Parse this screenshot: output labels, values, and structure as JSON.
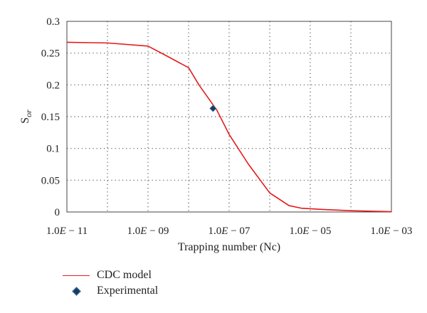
{
  "chart_data": {
    "type": "line",
    "xlabel": "Trapping number (Nc)",
    "ylabel_main": "S",
    "ylabel_sub": "or",
    "x_scale": "log",
    "xlim": [
      1e-11,
      0.001
    ],
    "ylim": [
      0,
      0.3
    ],
    "x_ticks": [
      1e-11,
      1e-10,
      1e-09,
      1e-08,
      1e-07,
      1e-06,
      1e-05,
      0.0001,
      0.001
    ],
    "x_tick_labels": [
      {
        "value": 1e-11,
        "mant": "1.0",
        "e": "E",
        "exp": " − 11"
      },
      {
        "value": 1e-09,
        "mant": "1.0",
        "e": "E",
        "exp": " − 09"
      },
      {
        "value": 1e-07,
        "mant": "1.0",
        "e": "E",
        "exp": " − 07"
      },
      {
        "value": 1e-05,
        "mant": "1.0",
        "e": "E",
        "exp": " − 05"
      },
      {
        "value": 0.001,
        "mant": "1.0",
        "e": "E",
        "exp": " − 03"
      }
    ],
    "y_ticks": [
      "0",
      "0.05",
      "0.1",
      "0.15",
      "0.2",
      "0.25",
      "0.3"
    ],
    "grid": "dotted",
    "legend_position": "bottom-left",
    "series": [
      {
        "name": "CDC model",
        "type": "line",
        "color": "#e41a1c",
        "points": [
          [
            1e-11,
            0.267
          ],
          [
            1e-10,
            0.266
          ],
          [
            1e-09,
            0.261
          ],
          [
            3e-09,
            0.245
          ],
          [
            1e-08,
            0.227
          ],
          [
            1.8e-08,
            0.2
          ],
          [
            3e-08,
            0.18
          ],
          [
            5e-08,
            0.16
          ],
          [
            1e-07,
            0.122
          ],
          [
            3e-07,
            0.075
          ],
          [
            1e-06,
            0.03
          ],
          [
            3e-06,
            0.01
          ],
          [
            6e-06,
            0.006
          ],
          [
            2e-05,
            0.004
          ],
          [
            0.0001,
            0.002
          ],
          [
            0.001,
            0.0005
          ]
        ]
      },
      {
        "name": "Experimental",
        "type": "scatter",
        "color": "#1b3a5c",
        "points": [
          [
            4e-08,
            0.163
          ]
        ]
      }
    ]
  }
}
